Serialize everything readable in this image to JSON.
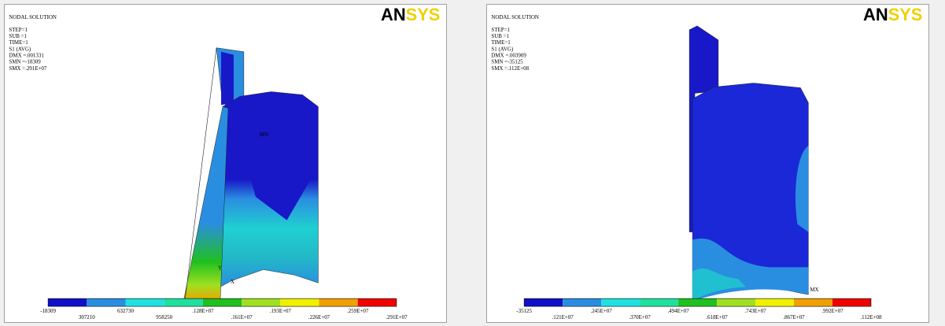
{
  "panels": [
    {
      "header": {
        "title": "NODAL SOLUTION",
        "logo": "ANSYS"
      },
      "info": [
        "STEP=1",
        "SUB =1",
        "TIME=1",
        "S1       (AVG)",
        "DMX =.001331",
        "SMN =-18309",
        "SMX =.291E+07"
      ],
      "annotations": [
        "MN",
        "X",
        "Y"
      ],
      "legend_labels": [
        "-18309",
        "307210",
        "632730",
        "958250",
        ".128E+07",
        ".161E+07",
        ".193E+07",
        ".226E+07",
        ".259E+07",
        ".291E+07"
      ]
    },
    {
      "header": {
        "title": "NODAL SOLUTION",
        "logo": "ANSYS"
      },
      "info": [
        "STEP=1",
        "SUB =1",
        "TIME=1",
        "S1       (AVG)",
        "DMX =.003909",
        "SMN =-35125",
        "SMX =.112E+08"
      ],
      "annotations": [
        "MX"
      ],
      "legend_labels": [
        "-35125",
        ".121E+07",
        ".245E+07",
        ".370E+07",
        ".494E+07",
        ".618E+07",
        ".743E+07",
        ".867E+07",
        ".992E+07",
        ".112E+08"
      ]
    }
  ]
}
